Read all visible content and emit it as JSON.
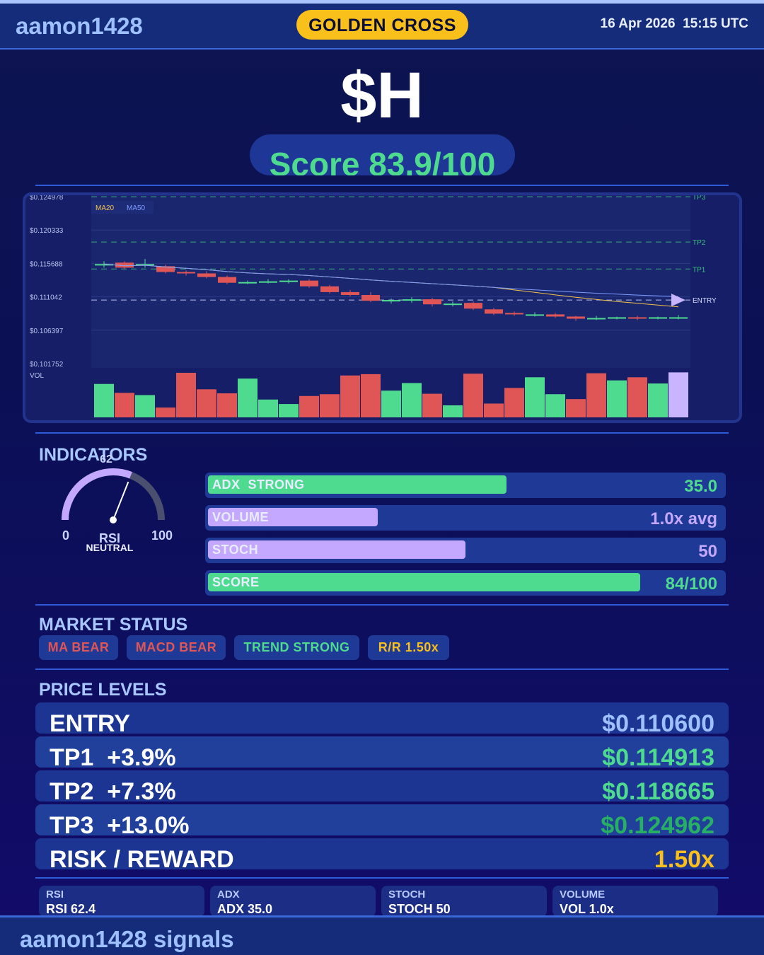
{
  "header": {
    "brand": "aamon1428",
    "badge": "GOLDEN CROSS",
    "datetime": "16 Apr 2026  15:15 UTC"
  },
  "ticker": "$H",
  "score": "Score 83.9/100",
  "chart_data": {
    "type": "candlestick",
    "y_tick_labels": [
      "$0.124978",
      "$0.120333",
      "$0.115688",
      "$0.111042",
      "$0.106397",
      "$0.101752"
    ],
    "ylim": [
      0.101752,
      0.124978
    ],
    "legend": [
      "MA20",
      "MA50"
    ],
    "volume_label": "VOL",
    "levels": [
      {
        "name": "TP3",
        "value": 0.124962
      },
      {
        "name": "TP2",
        "value": 0.118665
      },
      {
        "name": "TP1",
        "value": 0.114913
      },
      {
        "name": "ENTRY",
        "value": 0.1106
      }
    ],
    "candles": [
      {
        "o": 0.1156,
        "c": 0.1156,
        "h": 0.116,
        "l": 0.1151
      },
      {
        "o": 0.1158,
        "c": 0.1151,
        "h": 0.116,
        "l": 0.1149
      },
      {
        "o": 0.1155,
        "c": 0.1156,
        "h": 0.1163,
        "l": 0.1151
      },
      {
        "o": 0.1153,
        "c": 0.1145,
        "h": 0.1155,
        "l": 0.1143
      },
      {
        "o": 0.1145,
        "c": 0.1143,
        "h": 0.1147,
        "l": 0.114
      },
      {
        "o": 0.1143,
        "c": 0.1138,
        "h": 0.1146,
        "l": 0.1136
      },
      {
        "o": 0.1138,
        "c": 0.113,
        "h": 0.114,
        "l": 0.1128
      },
      {
        "o": 0.113,
        "c": 0.1131,
        "h": 0.1133,
        "l": 0.1128
      },
      {
        "o": 0.1131,
        "c": 0.1132,
        "h": 0.1135,
        "l": 0.1129
      },
      {
        "o": 0.1131,
        "c": 0.1133,
        "h": 0.1135,
        "l": 0.1129
      },
      {
        "o": 0.1133,
        "c": 0.1125,
        "h": 0.1135,
        "l": 0.1123
      },
      {
        "o": 0.1125,
        "c": 0.1117,
        "h": 0.1127,
        "l": 0.1115
      },
      {
        "o": 0.1117,
        "c": 0.1113,
        "h": 0.112,
        "l": 0.1111
      },
      {
        "o": 0.1113,
        "c": 0.1105,
        "h": 0.1117,
        "l": 0.1103
      },
      {
        "o": 0.1104,
        "c": 0.1106,
        "h": 0.1108,
        "l": 0.1101
      },
      {
        "o": 0.1106,
        "c": 0.1107,
        "h": 0.111,
        "l": 0.1102
      },
      {
        "o": 0.1107,
        "c": 0.11,
        "h": 0.1109,
        "l": 0.1097
      },
      {
        "o": 0.11,
        "c": 0.1101,
        "h": 0.1104,
        "l": 0.1097
      },
      {
        "o": 0.1102,
        "c": 0.1094,
        "h": 0.1104,
        "l": 0.1092
      },
      {
        "o": 0.1093,
        "c": 0.1087,
        "h": 0.1095,
        "l": 0.1085
      },
      {
        "o": 0.1088,
        "c": 0.1086,
        "h": 0.109,
        "l": 0.1084
      },
      {
        "o": 0.1085,
        "c": 0.1086,
        "h": 0.1089,
        "l": 0.1083
      },
      {
        "o": 0.1086,
        "c": 0.1083,
        "h": 0.1088,
        "l": 0.1081
      },
      {
        "o": 0.1083,
        "c": 0.108,
        "h": 0.1084,
        "l": 0.1077
      },
      {
        "o": 0.108,
        "c": 0.1081,
        "h": 0.1084,
        "l": 0.1078
      },
      {
        "o": 0.108,
        "c": 0.1082,
        "h": 0.1083,
        "l": 0.1079
      },
      {
        "o": 0.1082,
        "c": 0.1081,
        "h": 0.1084,
        "l": 0.1078
      },
      {
        "o": 0.108,
        "c": 0.1082,
        "h": 0.1083,
        "l": 0.1079
      },
      {
        "o": 0.1082,
        "c": 0.1082,
        "h": 0.1085,
        "l": 0.1079
      }
    ],
    "volumes": [
      {
        "v": 0.75,
        "up": true
      },
      {
        "v": 0.55,
        "up": false
      },
      {
        "v": 0.5,
        "up": true
      },
      {
        "v": 0.22,
        "up": false
      },
      {
        "v": 1.0,
        "up": false
      },
      {
        "v": 0.63,
        "up": false
      },
      {
        "v": 0.54,
        "up": false
      },
      {
        "v": 0.87,
        "up": true
      },
      {
        "v": 0.4,
        "up": true
      },
      {
        "v": 0.3,
        "up": true
      },
      {
        "v": 0.48,
        "up": false
      },
      {
        "v": 0.52,
        "up": false
      },
      {
        "v": 0.94,
        "up": false
      },
      {
        "v": 0.97,
        "up": false
      },
      {
        "v": 0.6,
        "up": true
      },
      {
        "v": 0.77,
        "up": true
      },
      {
        "v": 0.53,
        "up": false
      },
      {
        "v": 0.27,
        "up": true
      },
      {
        "v": 0.98,
        "up": false
      },
      {
        "v": 0.31,
        "up": false
      },
      {
        "v": 0.66,
        "up": false
      },
      {
        "v": 0.9,
        "up": true
      },
      {
        "v": 0.52,
        "up": true
      },
      {
        "v": 0.41,
        "up": false
      },
      {
        "v": 0.99,
        "up": false
      },
      {
        "v": 0.83,
        "up": true
      },
      {
        "v": 0.9,
        "up": false
      },
      {
        "v": 0.76,
        "up": true
      },
      {
        "v": 1.01,
        "up": null
      }
    ],
    "colors": {
      "up": "#4fdb8f",
      "down": "#e05656",
      "current": "#c8b4ff",
      "ma20": "#f2c24b",
      "ma50": "#7c9bff"
    }
  },
  "indicators": {
    "title": "INDICATORS",
    "rsi": {
      "value": 62,
      "min": "0",
      "max": "100",
      "label": "RSI",
      "state": "NEUTRAL",
      "display": "62"
    },
    "bars": [
      {
        "label": "ADX  STRONG",
        "value": "35.0",
        "fill": 0.58,
        "color": "#4fdb8f",
        "value_color": "#4fdb8f"
      },
      {
        "label": "VOLUME",
        "value": "1.0x avg",
        "fill": 0.33,
        "color": "#c4a8ff",
        "value_color": "#c4a8ff"
      },
      {
        "label": "STOCH",
        "value": "50",
        "fill": 0.5,
        "color": "#c4a8ff",
        "value_color": "#c4a8ff"
      },
      {
        "label": "SCORE",
        "value": "84/100",
        "fill": 0.839,
        "color": "#4fdb8f",
        "value_color": "#4fdb8f"
      }
    ]
  },
  "market_status": {
    "title": "MARKET STATUS",
    "chips": [
      {
        "label": "MA BEAR",
        "color": "#e05656"
      },
      {
        "label": "MACD BEAR",
        "color": "#e05656"
      },
      {
        "label": "TREND STRONG",
        "color": "#4fdb8f"
      },
      {
        "label": "R/R  1.50x",
        "color": "#f9bf1a"
      }
    ]
  },
  "price_levels": {
    "title": "PRICE LEVELS",
    "rows": [
      {
        "label": "ENTRY",
        "value": "$0.110600",
        "color": "#9fc0ff"
      },
      {
        "label": "TP1  +3.9%",
        "value": "$0.114913",
        "color": "#4fdb8f"
      },
      {
        "label": "TP2  +7.3%",
        "value": "$0.118665",
        "color": "#4fdb8f"
      },
      {
        "label": "TP3  +13.0%",
        "value": "$0.124962",
        "color": "#27b064"
      },
      {
        "label": "RISK / REWARD",
        "value": "1.50x",
        "color": "#f9bf1a"
      }
    ]
  },
  "summary": [
    {
      "key": "RSI",
      "value": "RSI 62.4"
    },
    {
      "key": "ADX",
      "value": "ADX 35.0"
    },
    {
      "key": "STOCH",
      "value": "STOCH 50"
    },
    {
      "key": "VOLUME",
      "value": "VOL 1.0x"
    }
  ],
  "footer": {
    "text": "aamon1428 signals"
  }
}
